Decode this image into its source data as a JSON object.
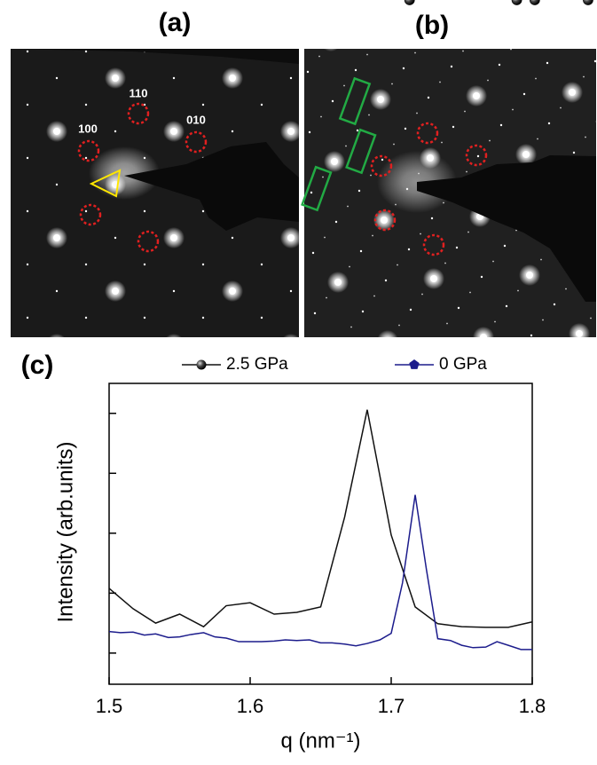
{
  "panels": {
    "a": {
      "label": "(a)",
      "spots": [
        "110",
        "100",
        "010"
      ]
    },
    "b": {
      "label": "(b)"
    },
    "c": {
      "label": "(c)"
    }
  },
  "chart_data": {
    "type": "line",
    "x_label": "q (nm⁻¹)",
    "y_label": "Intensity (arb.units)",
    "xlim": [
      1.5,
      1.8
    ],
    "xticks": [
      1.5,
      1.6,
      1.7,
      1.8
    ],
    "ylim": [
      0.48,
      5.5
    ],
    "yticks": [
      1,
      2,
      3,
      4,
      5
    ],
    "series": [
      {
        "name": "2.5 GPa",
        "color": "#111111",
        "marker": "circle",
        "x": [
          1.5,
          1.517,
          1.533,
          1.55,
          1.567,
          1.583,
          1.6,
          1.617,
          1.633,
          1.65,
          1.667,
          1.683,
          1.7,
          1.717,
          1.733,
          1.75,
          1.767,
          1.783,
          1.8
        ],
        "values": [
          2.08,
          1.74,
          1.5,
          1.65,
          1.44,
          1.79,
          1.84,
          1.65,
          1.68,
          1.77,
          3.27,
          5.06,
          2.97,
          1.77,
          1.49,
          1.44,
          1.43,
          1.43,
          1.52
        ]
      },
      {
        "name": "0 GPa",
        "color": "#1c1c8c",
        "marker": "pentagon",
        "x": [
          1.5,
          1.508,
          1.517,
          1.525,
          1.533,
          1.542,
          1.55,
          1.558,
          1.567,
          1.575,
          1.583,
          1.592,
          1.6,
          1.608,
          1.617,
          1.625,
          1.633,
          1.642,
          1.65,
          1.658,
          1.667,
          1.675,
          1.683,
          1.692,
          1.7,
          1.708,
          1.717,
          1.725,
          1.733,
          1.742,
          1.75,
          1.758,
          1.767,
          1.775,
          1.783,
          1.792,
          1.8
        ],
        "values": [
          1.36,
          1.34,
          1.35,
          1.3,
          1.32,
          1.26,
          1.27,
          1.31,
          1.34,
          1.27,
          1.25,
          1.19,
          1.19,
          1.19,
          1.2,
          1.22,
          1.21,
          1.22,
          1.17,
          1.17,
          1.15,
          1.12,
          1.16,
          1.22,
          1.33,
          2.17,
          3.64,
          2.39,
          1.24,
          1.21,
          1.13,
          1.09,
          1.1,
          1.19,
          1.13,
          1.06,
          1.06
        ]
      }
    ]
  }
}
